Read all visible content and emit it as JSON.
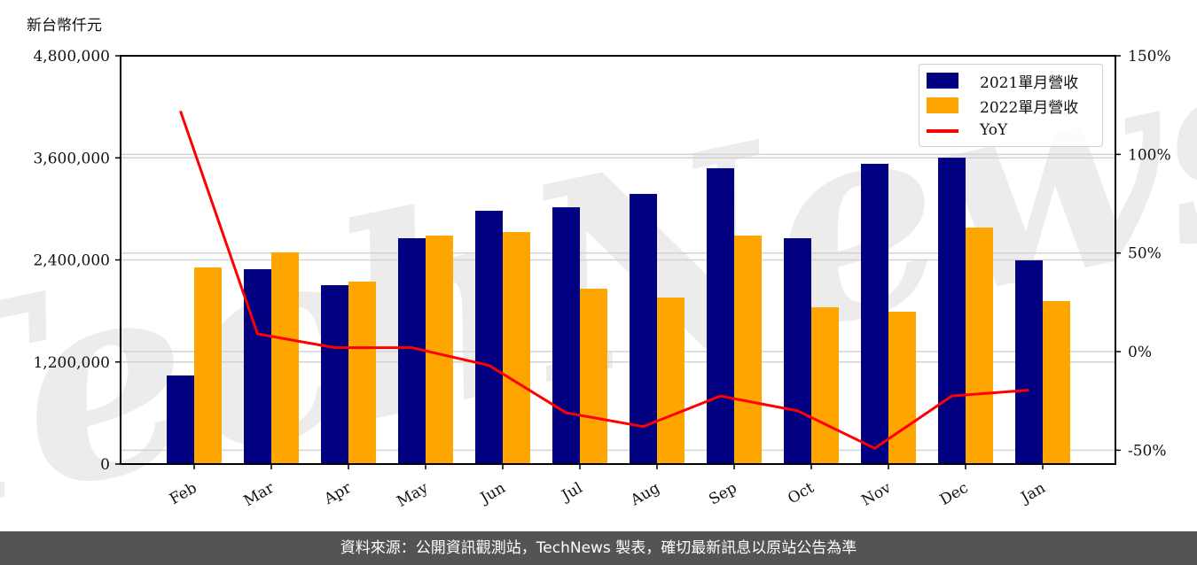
{
  "unit_label": "新台幣仟元",
  "footer": {
    "text": "資料來源：公開資訊觀測站，TechNews 製表，確切最新訊息以原站公告為準"
  },
  "watermark": "TechNews",
  "legend": {
    "items": [
      {
        "label": "2021單月營收",
        "color": "#000080",
        "kind": "bar"
      },
      {
        "label": "2022單月營收",
        "color": "#FFA500",
        "kind": "bar"
      },
      {
        "label": "YoY",
        "color": "#FF0000",
        "kind": "line"
      }
    ]
  },
  "colors": {
    "series_2021": "#000080",
    "series_2022": "#FFA500",
    "yoy": "#FF0000",
    "grid": "#d3d3d3",
    "footer_bg": "#545454"
  },
  "chart_data": {
    "type": "bar",
    "title": "",
    "xlabel": "",
    "ylabel": "新台幣仟元",
    "y2label": "YoY",
    "categories": [
      "Feb",
      "Mar",
      "Apr",
      "May",
      "Jun",
      "Jul",
      "Aug",
      "Sep",
      "Oct",
      "Nov",
      "Dec",
      "Jan"
    ],
    "series": [
      {
        "name": "2021單月營收",
        "type": "bar",
        "axis": "left",
        "color": "#000080",
        "values": [
          1041000,
          2291000,
          2103000,
          2655000,
          2978000,
          3019000,
          3176000,
          3478000,
          2655000,
          3530000,
          3602000,
          2395000
        ]
      },
      {
        "name": "2022單月營收",
        "type": "bar",
        "axis": "left",
        "color": "#FFA500",
        "values": [
          2311000,
          2488000,
          2145000,
          2686000,
          2728000,
          2062000,
          1957000,
          2686000,
          1843000,
          1791000,
          2780000,
          1916000
        ]
      },
      {
        "name": "YoY",
        "type": "line",
        "axis": "right",
        "color": "#FF0000",
        "unit": "%",
        "values": [
          122,
          9,
          2,
          2,
          -7,
          -31,
          -38,
          -22.5,
          -30,
          -49,
          -22.5,
          -19.5
        ]
      }
    ],
    "ylim": [
      0,
      4800000
    ],
    "yticks": [
      0,
      1200000,
      2400000,
      3600000,
      4800000
    ],
    "ytick_labels": [
      "0",
      "1,200,000",
      "2,400,000",
      "3,600,000",
      "4,800,000"
    ],
    "y2lim": [
      -57,
      150
    ],
    "y2ticks": [
      -50,
      0,
      50,
      100,
      150
    ],
    "y2tick_labels": [
      "-50%",
      "0%",
      "50%",
      "100%",
      "150%"
    ],
    "grid": true,
    "legend_position": "upper right"
  }
}
